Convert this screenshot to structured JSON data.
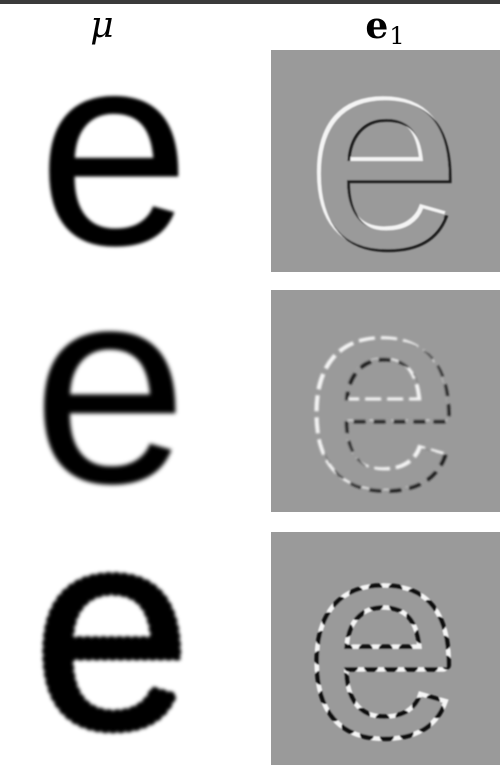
{
  "columns": {
    "mu": {
      "symbol": "μ"
    },
    "e1": {
      "base": "e",
      "subscript": "1"
    }
  },
  "colors": {
    "glyph": "#000000",
    "eigen_background": "#9a9a9a",
    "positive_edge": "#f4f4f4",
    "negative_edge": "#1a1a1a",
    "top_rule": "#3a3a3a"
  },
  "rows": [
    {
      "mean_image": "smooth-e-glyph",
      "eigen_image": "thin-edge-response"
    },
    {
      "mean_image": "smooth-e-glyph",
      "eigen_image": "edge-response-dashed"
    },
    {
      "mean_image": "bumpy-e-glyph",
      "eigen_image": "dotted-edge-response"
    }
  ]
}
